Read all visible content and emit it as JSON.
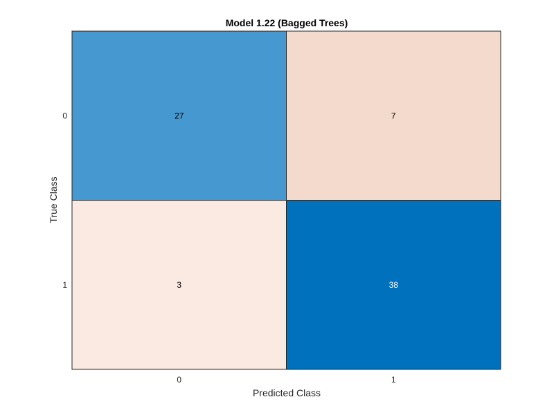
{
  "chart_data": {
    "type": "heatmap",
    "title": "Model 1.22 (Bagged Trees)",
    "xlabel": "Predicted Class",
    "ylabel": "True Class",
    "x_categories": [
      "0",
      "1"
    ],
    "y_categories": [
      "0",
      "1"
    ],
    "values": [
      [
        27,
        7
      ],
      [
        3,
        38
      ]
    ],
    "cell_colors": [
      [
        "#4698d0",
        "#f4d9cd"
      ],
      [
        "#fbeae1",
        "#0072bd"
      ]
    ],
    "cell_text_colors": [
      [
        "#000000",
        "#000000"
      ],
      [
        "#000000",
        "#ffffff"
      ]
    ],
    "grid": true
  }
}
